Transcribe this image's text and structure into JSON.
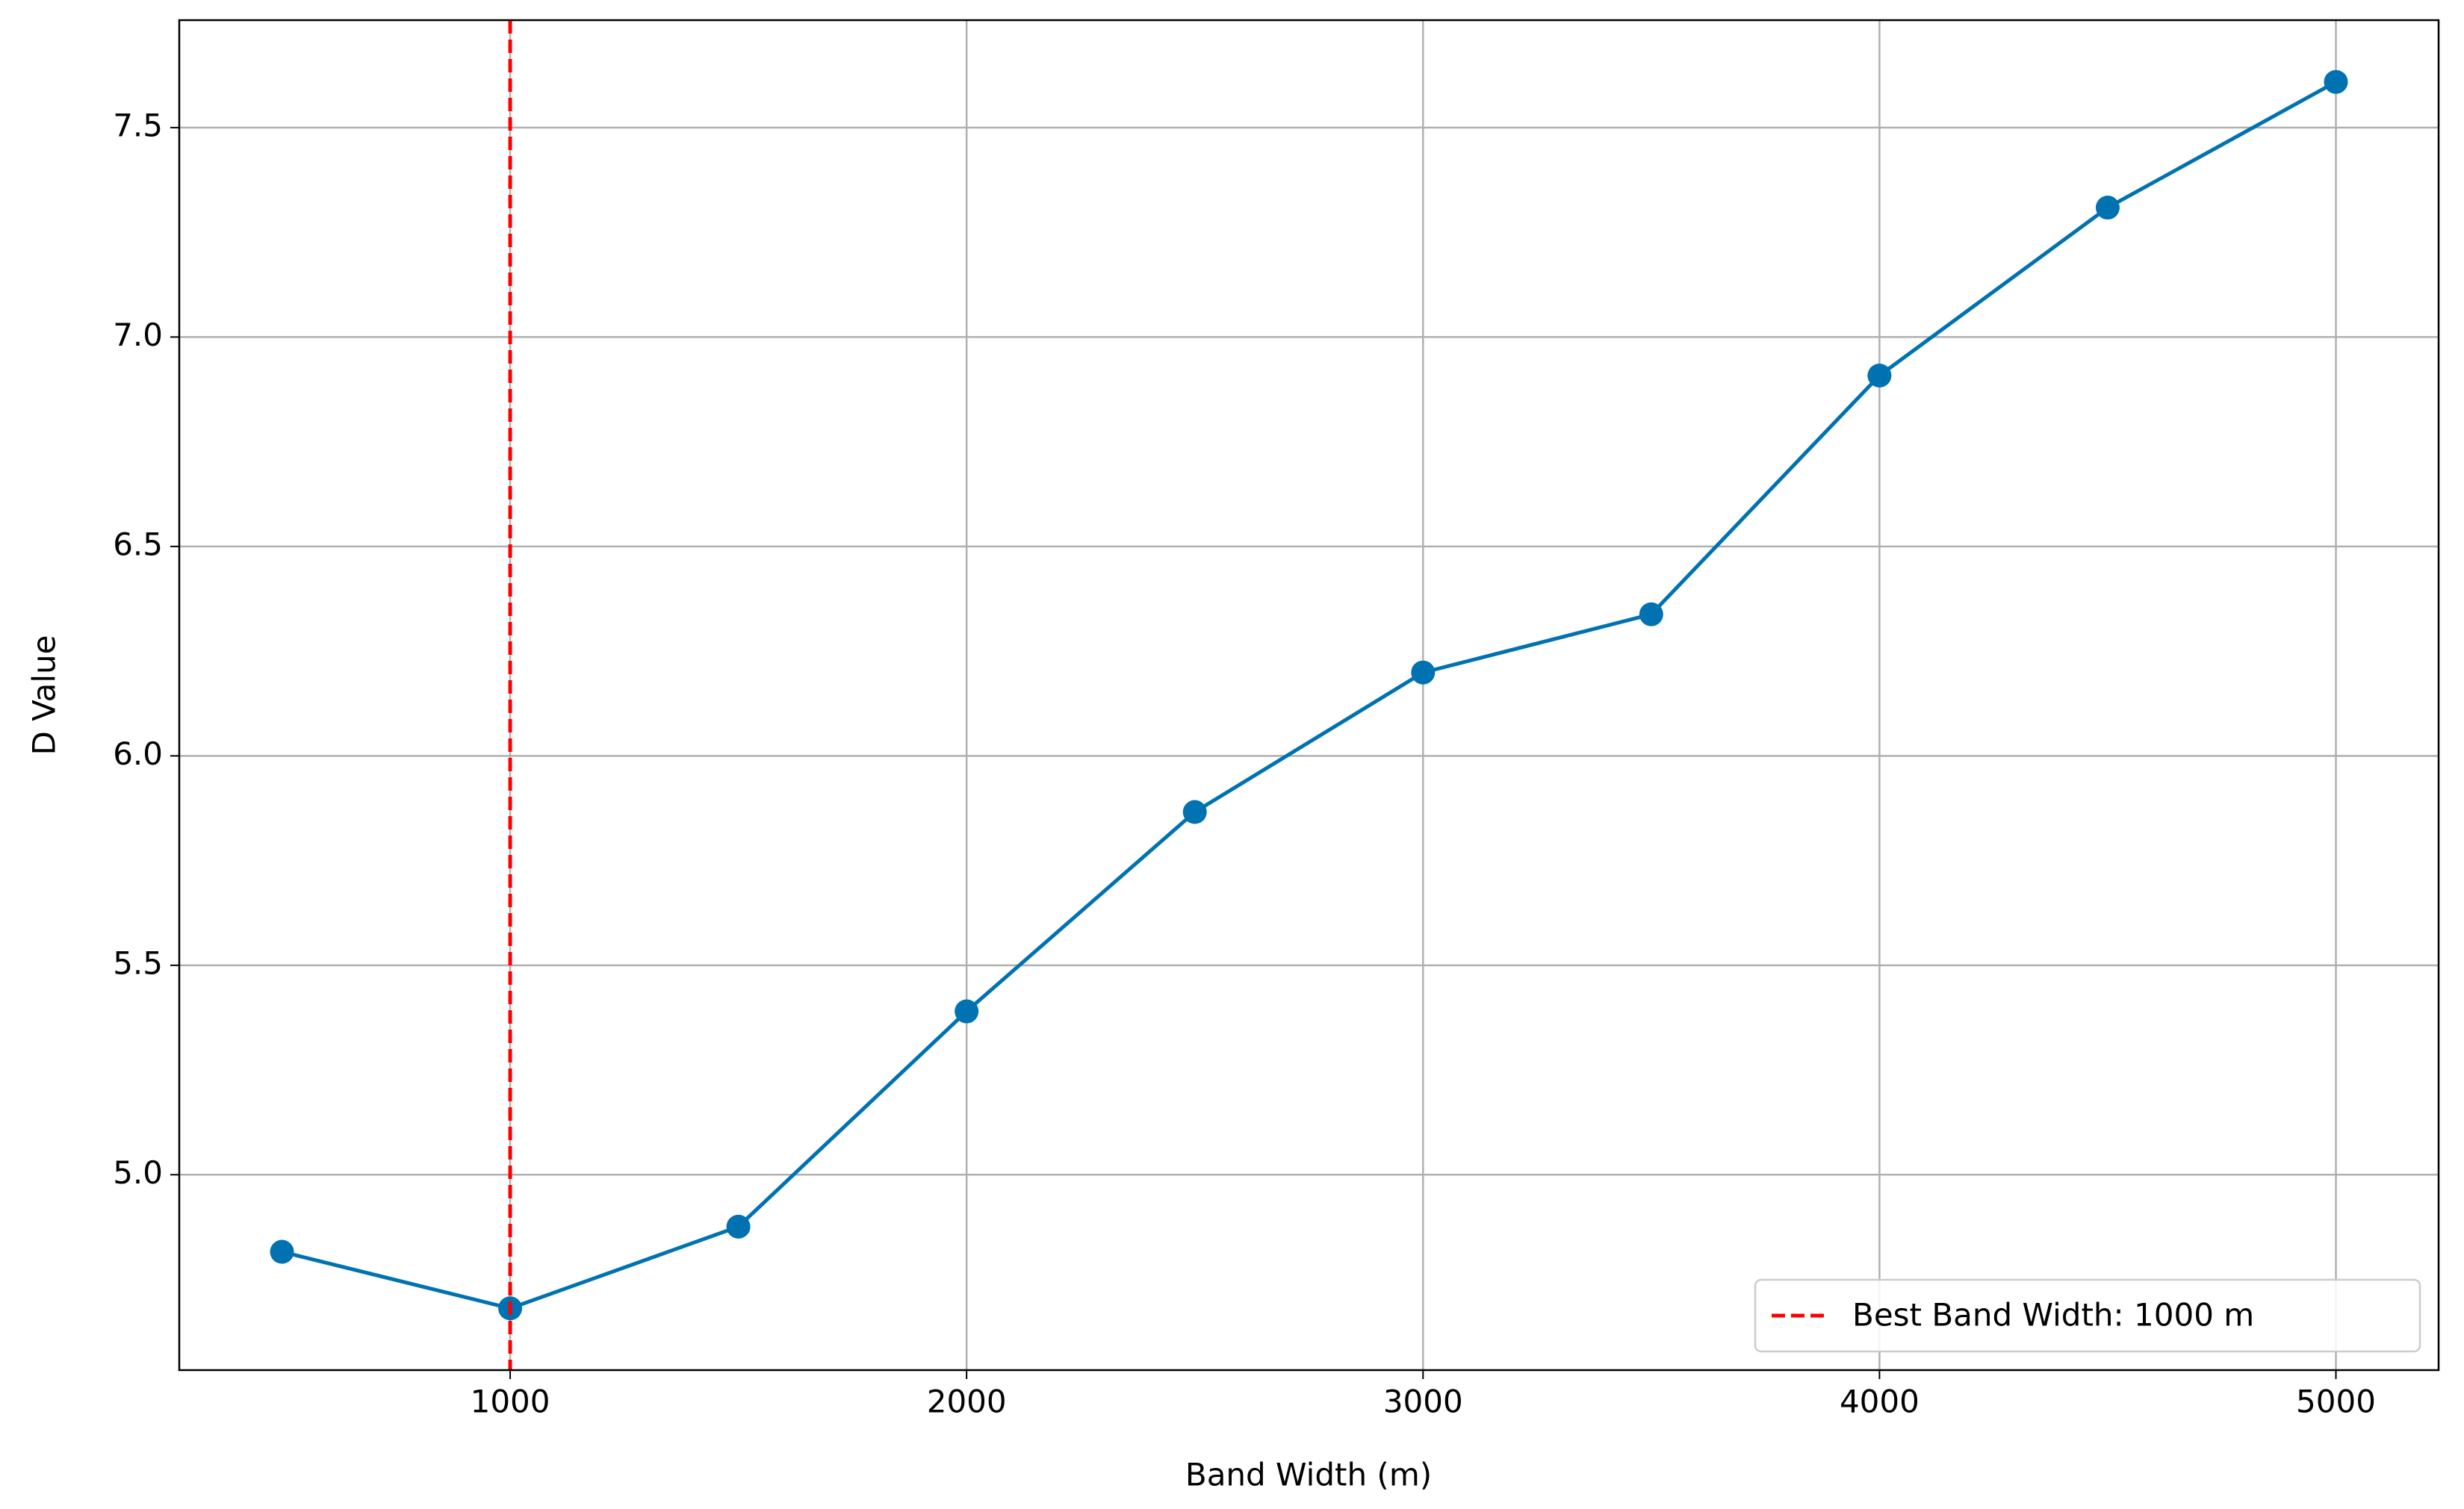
{
  "chart_data": {
    "type": "line",
    "xlabel": "Band Width (m)",
    "ylabel": "D Value",
    "x": [
      500,
      1000,
      1500,
      2000,
      2500,
      3000,
      3500,
      4000,
      4500,
      5000
    ],
    "series": [
      {
        "color": "#0072B2",
        "values": [
          4.816,
          4.681,
          4.876,
          5.39,
          5.866,
          6.199,
          6.338,
          6.908,
          7.309,
          7.609
        ]
      }
    ],
    "vline": {
      "x": 1000,
      "name": "Best Band Width: 1000 m",
      "color": "#ff0000"
    },
    "xlim": [
      275,
      5225
    ],
    "xticks": [
      1000,
      2000,
      3000,
      4000,
      5000
    ],
    "ylim": [
      4.5335,
      7.7565
    ],
    "yticks": [
      {
        "value": 5,
        "label": "5.0"
      },
      5.5,
      {
        "value": 6,
        "label": "6.0"
      },
      6.5,
      {
        "value": 7,
        "label": "7.0"
      },
      7.5
    ],
    "grid": true,
    "legend": "lower right"
  }
}
